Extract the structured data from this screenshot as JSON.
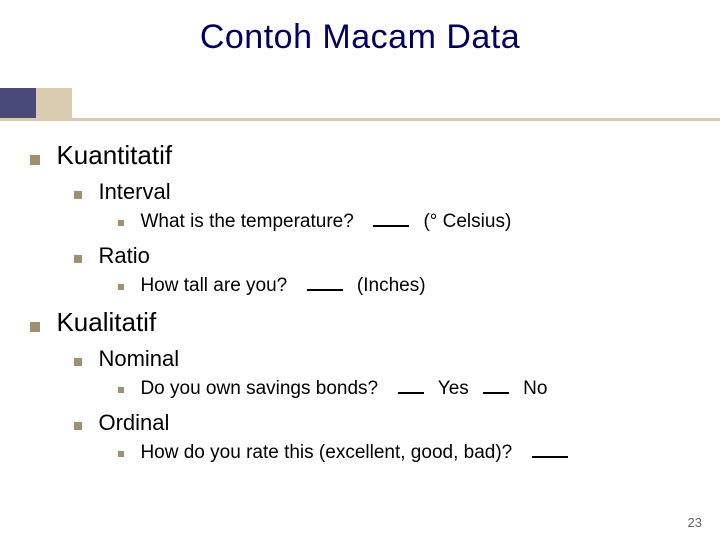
{
  "title": "Contoh Macam  Data",
  "page_number": "23",
  "colors": {
    "title": "#000060",
    "bullet": "#a09070",
    "deco_dark": "#4a4a7a",
    "deco_light": "#d8cbb0",
    "text": "#000000",
    "background": "#ffffff"
  },
  "typography": {
    "title_fontsize": 34,
    "lvl1_fontsize": 26,
    "lvl2_fontsize": 22,
    "lvl3_fontsize": 19,
    "font_family": "Verdana"
  },
  "sections": {
    "kuantitatif": {
      "label": "Kuantitatif",
      "interval": {
        "label": "Interval",
        "q": {
          "text": "What is the temperature?",
          "suffix": "(° Celsius)"
        }
      },
      "ratio": {
        "label": "Ratio",
        "q": {
          "text": "How tall are you?",
          "suffix": "(Inches)"
        }
      }
    },
    "kualitatif": {
      "label": "Kualitatif",
      "nominal": {
        "label": "Nominal",
        "q": {
          "text": "Do you own savings bonds?",
          "yes": "Yes",
          "no": "No"
        }
      },
      "ordinal": {
        "label": "Ordinal",
        "q": {
          "text": "How do you rate this (excellent, good, bad)?"
        }
      }
    }
  }
}
